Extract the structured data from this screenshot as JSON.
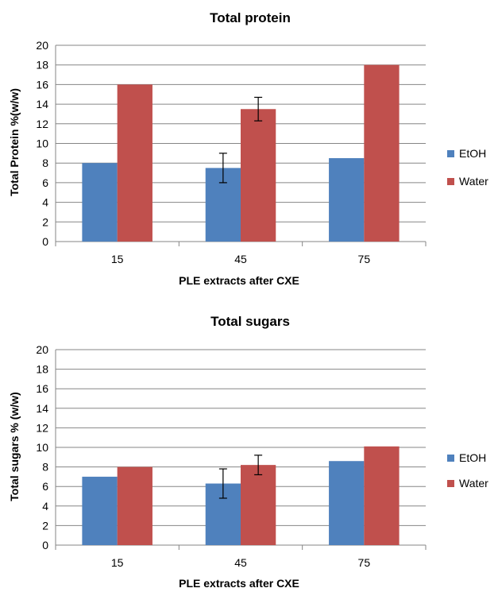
{
  "chart_data": [
    {
      "type": "bar",
      "title": "Total protein",
      "xlabel": "PLE extracts after CXE",
      "ylabel": "Total Protein %(w/w)",
      "categories": [
        "15",
        "45",
        "75"
      ],
      "ylim": [
        0,
        20
      ],
      "yticks": [
        "0",
        "2",
        "4",
        "6",
        "8",
        "10",
        "12",
        "14",
        "16",
        "18",
        "20"
      ],
      "grid": true,
      "legend_position": "right",
      "series": [
        {
          "name": "EtOH",
          "color": "#4f81bd",
          "values": [
            8.0,
            7.5,
            8.5
          ],
          "errors": [
            null,
            1.5,
            null
          ]
        },
        {
          "name": "Water",
          "color": "#c0504d",
          "values": [
            16.0,
            13.5,
            18.0
          ],
          "errors": [
            null,
            1.2,
            null
          ]
        }
      ]
    },
    {
      "type": "bar",
      "title": "Total sugars",
      "xlabel": "PLE extracts after CXE",
      "ylabel": "Total sugars % (w/w)",
      "categories": [
        "15",
        "45",
        "75"
      ],
      "ylim": [
        0,
        20
      ],
      "yticks": [
        "0",
        "2",
        "4",
        "6",
        "8",
        "10",
        "12",
        "14",
        "16",
        "18",
        "20"
      ],
      "grid": true,
      "legend_position": "right",
      "series": [
        {
          "name": "EtOH",
          "color": "#4f81bd",
          "values": [
            7.0,
            6.3,
            8.6
          ],
          "errors": [
            null,
            1.5,
            null
          ]
        },
        {
          "name": "Water",
          "color": "#c0504d",
          "values": [
            8.0,
            8.2,
            10.1
          ],
          "errors": [
            null,
            1.0,
            null
          ]
        }
      ]
    }
  ]
}
